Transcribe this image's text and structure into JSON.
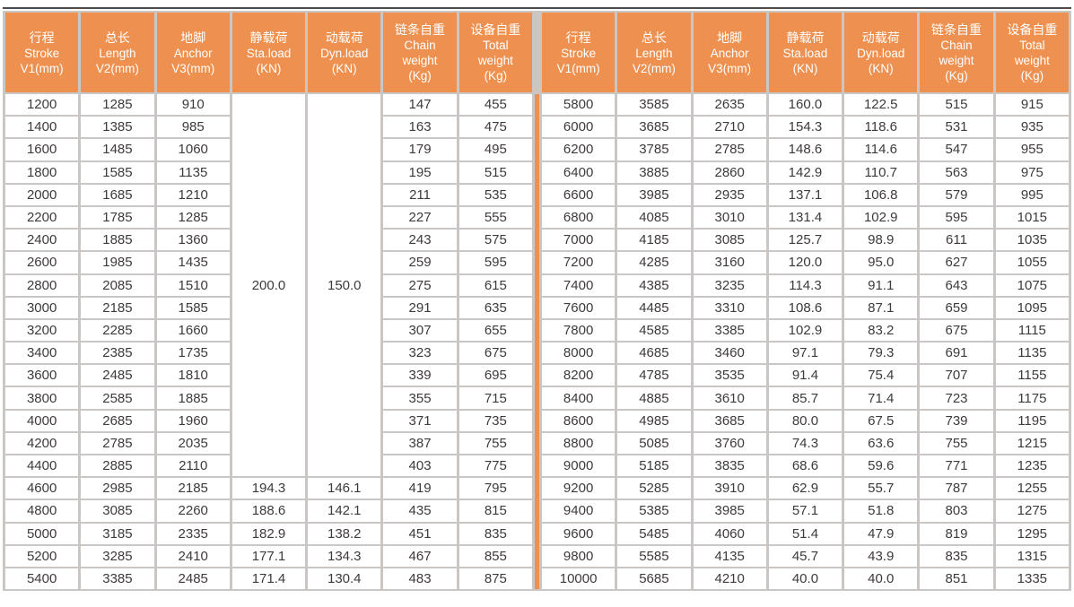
{
  "colors": {
    "header_orange": "#EE9150",
    "grid_gray": "#C9C6C3",
    "top_line_dark": "#4B4B4D",
    "text_dark": "#3E3A39",
    "cell_white": "#FFFFFF"
  },
  "table": {
    "columns": [
      {
        "key": "stroke",
        "lines": [
          "行程",
          "Stroke",
          "V1(mm)"
        ]
      },
      {
        "key": "length",
        "lines": [
          "总长",
          "Length",
          "V2(mm)"
        ]
      },
      {
        "key": "anchor",
        "lines": [
          "地脚",
          "Anchor",
          "V3(mm)"
        ]
      },
      {
        "key": "sta-load",
        "lines": [
          "静载荷",
          "Sta.load",
          "(KN)"
        ]
      },
      {
        "key": "dyn-load",
        "lines": [
          "动载荷",
          "Dyn.load",
          "(KN)"
        ]
      },
      {
        "key": "chain-weight",
        "lines": [
          "链条自重",
          "Chain",
          "weight",
          "(Kg)"
        ]
      },
      {
        "key": "total-weight",
        "lines": [
          "设备自重",
          "Total",
          "weight",
          "(Kg)"
        ]
      }
    ],
    "merged_left": {
      "sta": "200.0",
      "dyn": "150.0",
      "rowspan": 17
    },
    "left_rows": [
      [
        "1200",
        "1285",
        "910",
        null,
        null,
        "147",
        "455"
      ],
      [
        "1400",
        "1385",
        "985",
        null,
        null,
        "163",
        "475"
      ],
      [
        "1600",
        "1485",
        "1060",
        null,
        null,
        "179",
        "495"
      ],
      [
        "1800",
        "1585",
        "1135",
        null,
        null,
        "195",
        "515"
      ],
      [
        "2000",
        "1685",
        "1210",
        null,
        null,
        "211",
        "535"
      ],
      [
        "2200",
        "1785",
        "1285",
        null,
        null,
        "227",
        "555"
      ],
      [
        "2400",
        "1885",
        "1360",
        null,
        null,
        "243",
        "575"
      ],
      [
        "2600",
        "1985",
        "1435",
        null,
        null,
        "259",
        "595"
      ],
      [
        "2800",
        "2085",
        "1510",
        null,
        null,
        "275",
        "615"
      ],
      [
        "3000",
        "2185",
        "1585",
        null,
        null,
        "291",
        "635"
      ],
      [
        "3200",
        "2285",
        "1660",
        null,
        null,
        "307",
        "655"
      ],
      [
        "3400",
        "2385",
        "1735",
        null,
        null,
        "323",
        "675"
      ],
      [
        "3600",
        "2485",
        "1810",
        null,
        null,
        "339",
        "695"
      ],
      [
        "3800",
        "2585",
        "1885",
        null,
        null,
        "355",
        "715"
      ],
      [
        "4000",
        "2685",
        "1960",
        null,
        null,
        "371",
        "735"
      ],
      [
        "4200",
        "2785",
        "2035",
        null,
        null,
        "387",
        "755"
      ],
      [
        "4400",
        "2885",
        "2110",
        null,
        null,
        "403",
        "775"
      ],
      [
        "4600",
        "2985",
        "2185",
        "194.3",
        "146.1",
        "419",
        "795"
      ],
      [
        "4800",
        "3085",
        "2260",
        "188.6",
        "142.1",
        "435",
        "815"
      ],
      [
        "5000",
        "3185",
        "2335",
        "182.9",
        "138.2",
        "451",
        "835"
      ],
      [
        "5200",
        "3285",
        "2410",
        "177.1",
        "134.3",
        "467",
        "855"
      ],
      [
        "5400",
        "3385",
        "2485",
        "171.4",
        "130.4",
        "483",
        "875"
      ]
    ],
    "right_rows": [
      [
        "5800",
        "3585",
        "2635",
        "160.0",
        "122.5",
        "515",
        "915"
      ],
      [
        "6000",
        "3685",
        "2710",
        "154.3",
        "118.6",
        "531",
        "935"
      ],
      [
        "6200",
        "3785",
        "2785",
        "148.6",
        "114.6",
        "547",
        "955"
      ],
      [
        "6400",
        "3885",
        "2860",
        "142.9",
        "110.7",
        "563",
        "975"
      ],
      [
        "6600",
        "3985",
        "2935",
        "137.1",
        "106.8",
        "579",
        "995"
      ],
      [
        "6800",
        "4085",
        "3010",
        "131.4",
        "102.9",
        "595",
        "1015"
      ],
      [
        "7000",
        "4185",
        "3085",
        "125.7",
        "98.9",
        "611",
        "1035"
      ],
      [
        "7200",
        "4285",
        "3160",
        "120.0",
        "95.0",
        "627",
        "1055"
      ],
      [
        "7400",
        "4385",
        "3235",
        "114.3",
        "91.1",
        "643",
        "1075"
      ],
      [
        "7600",
        "4485",
        "3310",
        "108.6",
        "87.1",
        "659",
        "1095"
      ],
      [
        "7800",
        "4585",
        "3385",
        "102.9",
        "83.2",
        "675",
        "1115"
      ],
      [
        "8000",
        "4685",
        "3460",
        "97.1",
        "79.3",
        "691",
        "1135"
      ],
      [
        "8200",
        "4785",
        "3535",
        "91.4",
        "75.4",
        "707",
        "1155"
      ],
      [
        "8400",
        "4885",
        "3610",
        "85.7",
        "71.4",
        "723",
        "1175"
      ],
      [
        "8600",
        "4985",
        "3685",
        "80.0",
        "67.5",
        "739",
        "1195"
      ],
      [
        "8800",
        "5085",
        "3760",
        "74.3",
        "63.6",
        "755",
        "1215"
      ],
      [
        "9000",
        "5185",
        "3835",
        "68.6",
        "59.6",
        "771",
        "1235"
      ],
      [
        "9200",
        "5285",
        "3910",
        "62.9",
        "55.7",
        "787",
        "1255"
      ],
      [
        "9400",
        "5385",
        "3985",
        "57.1",
        "51.8",
        "803",
        "1275"
      ],
      [
        "9600",
        "5485",
        "4060",
        "51.4",
        "47.9",
        "819",
        "1295"
      ],
      [
        "9800",
        "5585",
        "4135",
        "45.7",
        "43.9",
        "835",
        "1315"
      ],
      [
        "10000",
        "5685",
        "4210",
        "40.0",
        "40.0",
        "851",
        "1335"
      ]
    ]
  }
}
